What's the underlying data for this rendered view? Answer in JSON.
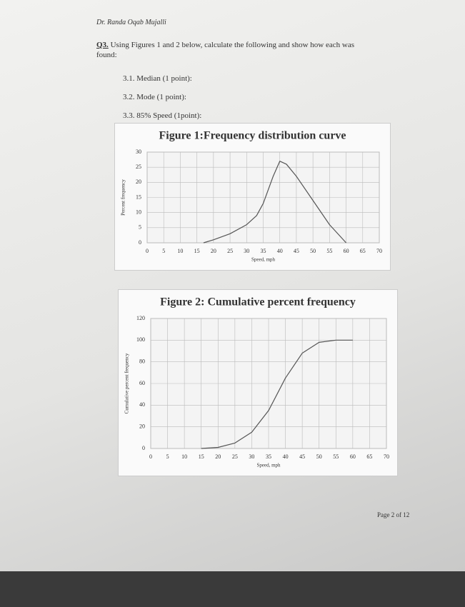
{
  "header": {
    "author": "Dr. Randa Oqab Mujalli"
  },
  "question": {
    "number": "Q3.",
    "text": "Using Figures 1 and 2 below, calculate the following and show how each was found:"
  },
  "items": [
    "3.1. Median (1 point):",
    "3.2. Mode (1 point):",
    "3.3. 85% Speed (1point):"
  ],
  "chart_data": [
    {
      "type": "line",
      "title": "Figure 1:Frequency distribution curve",
      "xlabel": "Speed, mph",
      "ylabel": "Percent frequency",
      "x": [
        17,
        20,
        25,
        30,
        33,
        35,
        38,
        40,
        42,
        45,
        50,
        55,
        60
      ],
      "values": [
        0,
        1,
        3,
        6,
        9,
        13,
        22,
        27,
        26,
        22,
        14,
        6,
        0
      ],
      "color": "#555555",
      "grid": true,
      "xlim": [
        0,
        70
      ],
      "xticks": [
        0,
        5,
        10,
        15,
        20,
        25,
        30,
        35,
        40,
        45,
        50,
        55,
        60,
        65,
        70
      ],
      "ylim": [
        0,
        30
      ],
      "yticks": [
        0,
        5,
        10,
        15,
        20,
        25,
        30
      ]
    },
    {
      "type": "line",
      "title": "Figure 2: Cumulative percent frequency",
      "xlabel": "Speed, mph",
      "ylabel": "Cumulative percent frequency",
      "x": [
        15,
        20,
        25,
        30,
        35,
        40,
        45,
        50,
        55,
        60
      ],
      "values": [
        0,
        1,
        5,
        15,
        35,
        65,
        88,
        98,
        100,
        100
      ],
      "color": "#555555",
      "grid": true,
      "xlim": [
        0,
        70
      ],
      "xticks": [
        0,
        5,
        10,
        15,
        20,
        25,
        30,
        35,
        40,
        45,
        50,
        55,
        60,
        65,
        70
      ],
      "ylim": [
        0,
        120
      ],
      "yticks": [
        0,
        20,
        40,
        60,
        80,
        100,
        120
      ]
    }
  ],
  "footer": "Page 2 of 12"
}
